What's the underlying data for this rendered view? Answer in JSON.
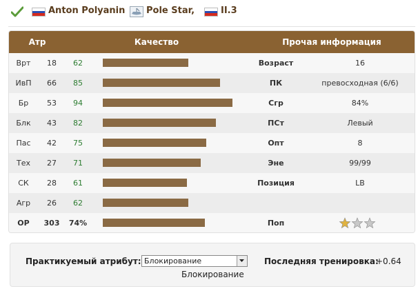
{
  "header": {
    "player_name": "Anton Polyanin",
    "team_name": "Pole Star,",
    "league": "II.3",
    "flag_colors": [
      "#ffffff",
      "#2b4fb3",
      "#d52b1e"
    ]
  },
  "table": {
    "headers": {
      "attr": "Атр",
      "quality": "Качество",
      "other": "Прочая информация"
    },
    "rows": [
      {
        "attr": "Врт",
        "value": "18",
        "quality": "62",
        "label": "Возраст",
        "info": "16"
      },
      {
        "attr": "ИвП",
        "value": "66",
        "quality": "85",
        "label": "ПК",
        "info": "превосходная (6/6)"
      },
      {
        "attr": "Бр",
        "value": "53",
        "quality": "94",
        "label": "Сгр",
        "info": "84%"
      },
      {
        "attr": "Блк",
        "value": "43",
        "quality": "82",
        "label": "ПСт",
        "info": "Левый"
      },
      {
        "attr": "Пас",
        "value": "42",
        "quality": "75",
        "label": "Опт",
        "info": "8"
      },
      {
        "attr": "Тех",
        "value": "27",
        "quality": "71",
        "label": "Эне",
        "info": "99/99"
      },
      {
        "attr": "СК",
        "value": "28",
        "quality": "61",
        "label": "Позиция",
        "info": "LB"
      },
      {
        "attr": "Агр",
        "value": "26",
        "quality": "62",
        "label": "",
        "info": ""
      }
    ],
    "total": {
      "attr": "ОР",
      "value": "303",
      "quality": "74%",
      "quality_value": 74,
      "label": "Поп",
      "stars": 1,
      "stars_max": 3
    },
    "bar_color": "#8a6a44",
    "quality_color": "#2e7d32",
    "header_color": "#8a6232"
  },
  "footer": {
    "practice_label": "Практикуемый атрибут:",
    "practice_selected": "Блокирование",
    "practice_sub": "Блокирование",
    "last_training_label": "Последняя тренировка:",
    "last_training_value": "+0.64"
  }
}
